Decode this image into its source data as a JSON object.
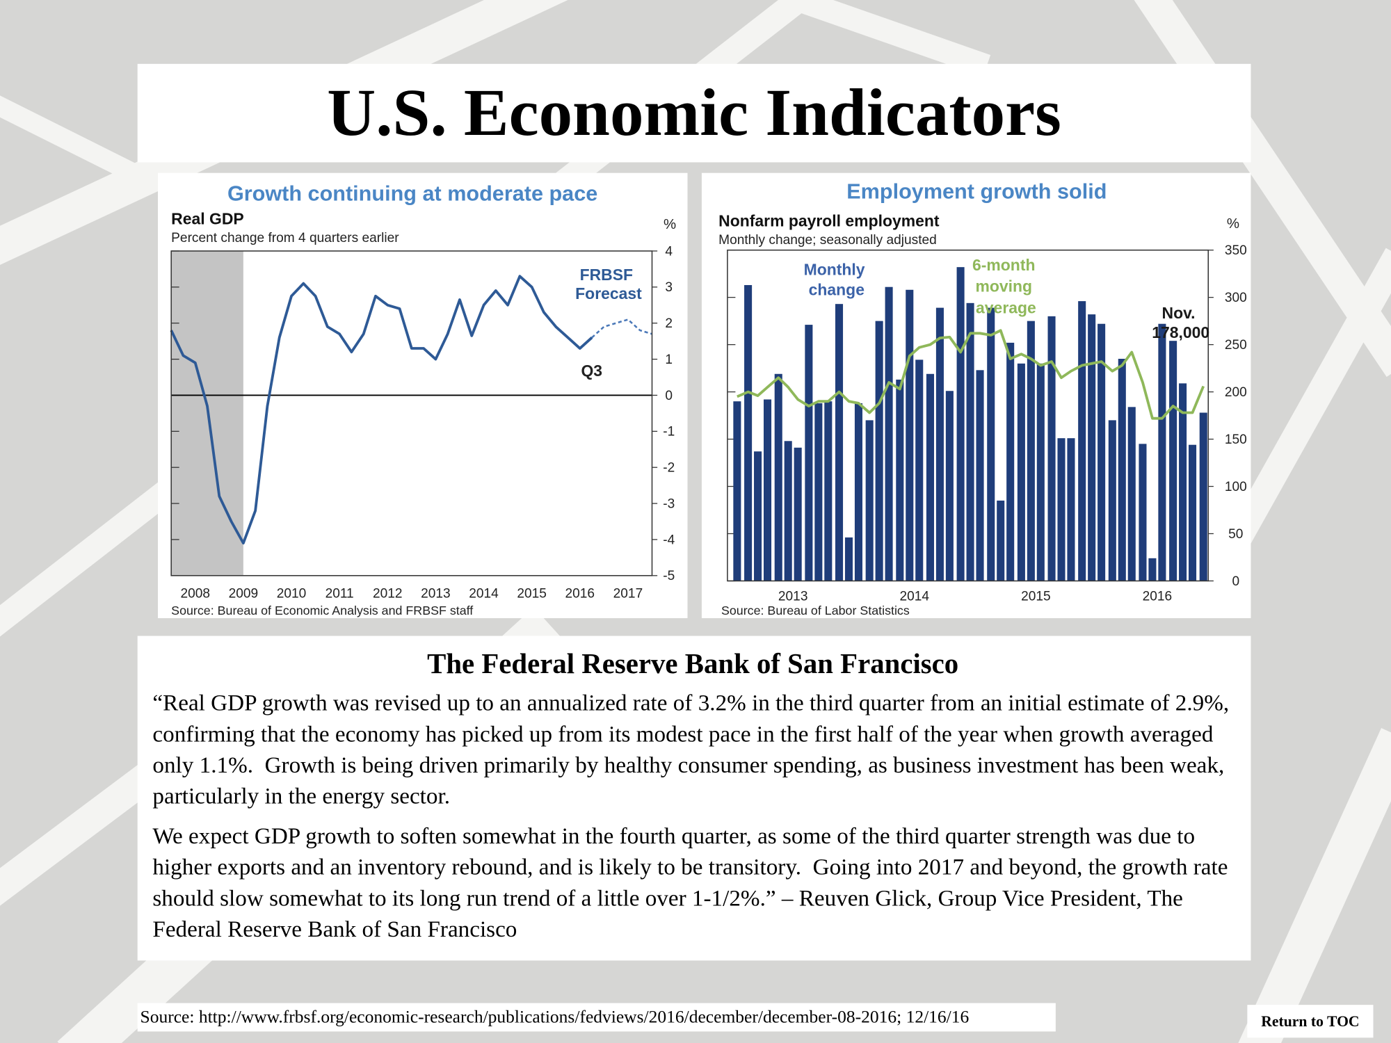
{
  "title": "U.S. Economic Indicators",
  "chart_data": [
    {
      "type": "line",
      "title": "Growth continuing  at moderate pace",
      "subtitle": "Real GDP",
      "caption": "Percent change from 4 quarters earlier",
      "unit": "%",
      "source": "Source: Bureau of Economic Analysis and FRBSF staff",
      "annotations": [
        "FRBSF Forecast",
        "Q3"
      ],
      "xlim": [
        2008,
        2018
      ],
      "ylim": [
        -5,
        4
      ],
      "yticks": [
        4,
        3,
        2,
        1,
        0,
        -1,
        -2,
        -3,
        -4,
        -5
      ],
      "xticks": [
        {
          "value": 2008.5,
          "label": "2008"
        },
        {
          "value": 2009.5,
          "label": "2009"
        },
        {
          "value": 2010.5,
          "label": "2010"
        },
        {
          "value": 2011.5,
          "label": "2011"
        },
        {
          "value": 2012.5,
          "label": "2012"
        },
        {
          "value": 2013.5,
          "label": "2013"
        },
        {
          "value": 2014.5,
          "label": "2014"
        },
        {
          "value": 2015.5,
          "label": "2015"
        },
        {
          "value": 2016.5,
          "label": "2016"
        },
        {
          "value": 2017.5,
          "label": "2017"
        }
      ],
      "shade": [
        2008,
        2009.5
      ],
      "series": [
        {
          "color": "#2e5a96",
          "x": [
            2008,
            2008.25,
            2008.5,
            2008.75,
            2009,
            2009.25,
            2009.5,
            2009.75,
            2010,
            2010.25,
            2010.5,
            2010.75,
            2011,
            2011.25,
            2011.5,
            2011.75,
            2012,
            2012.25,
            2012.5,
            2012.75,
            2013,
            2013.25,
            2013.5,
            2013.75,
            2014,
            2014.25,
            2014.5,
            2014.75,
            2015,
            2015.25,
            2015.5,
            2015.75,
            2016,
            2016.25,
            2016.5,
            2016.75
          ],
          "values": [
            1.8,
            1.1,
            0.9,
            -0.3,
            -2.8,
            -3.5,
            -4.1,
            -3.2,
            -0.3,
            1.6,
            2.75,
            3.1,
            2.75,
            1.9,
            1.7,
            1.2,
            1.7,
            2.75,
            2.5,
            2.4,
            1.3,
            1.3,
            1.0,
            1.7,
            2.65,
            1.65,
            2.5,
            2.9,
            2.5,
            3.3,
            3.0,
            2.3,
            1.9,
            1.6,
            1.3,
            1.6
          ]
        },
        {
          "color": "#4a78b8",
          "dash": true,
          "x": [
            2016.75,
            2017,
            2017.25,
            2017.5,
            2017.75,
            2018
          ],
          "values": [
            1.6,
            1.9,
            2.0,
            2.1,
            1.8,
            1.7
          ]
        }
      ]
    },
    {
      "type": "bar",
      "title": "Employment growth solid",
      "subtitle": "Nonfarm payroll employment",
      "caption": "Monthly change; seasonally adjusted",
      "unit": "%",
      "source": "Source: Bureau of Labor Statistics",
      "annotations": [
        "Nov. 178,000"
      ],
      "xlim": [
        2012.96,
        2016.92
      ],
      "ylim": [
        0,
        350
      ],
      "yticks": [
        350,
        300,
        250,
        200,
        150,
        100,
        50,
        0
      ],
      "xticks": [
        {
          "value": 2013.5,
          "label": "2013"
        },
        {
          "value": 2014.5,
          "label": "2014"
        },
        {
          "value": 2015.5,
          "label": "2015"
        },
        {
          "value": 2016.5,
          "label": "2016"
        }
      ],
      "x": [
        2013.04,
        2013.13,
        2013.21,
        2013.29,
        2013.38,
        2013.46,
        2013.54,
        2013.63,
        2013.71,
        2013.79,
        2013.88,
        2013.96,
        2014.04,
        2014.13,
        2014.21,
        2014.29,
        2014.38,
        2014.46,
        2014.54,
        2014.63,
        2014.71,
        2014.79,
        2014.88,
        2014.96,
        2015.04,
        2015.13,
        2015.21,
        2015.29,
        2015.38,
        2015.46,
        2015.54,
        2015.63,
        2015.71,
        2015.79,
        2015.88,
        2015.96,
        2016.04,
        2016.13,
        2016.21,
        2016.29,
        2016.38,
        2016.46,
        2016.54,
        2016.63,
        2016.71,
        2016.79,
        2016.88
      ],
      "series": [
        {
          "name": "Monthly change",
          "type": "bar",
          "color": "#1f3d7a",
          "values": [
            190,
            313,
            137,
            192,
            219,
            148,
            141,
            271,
            188,
            190,
            293,
            46,
            188,
            170,
            275,
            311,
            213,
            308,
            234,
            219,
            289,
            201,
            332,
            294,
            223,
            289,
            85,
            252,
            230,
            275,
            230,
            280,
            151,
            151,
            296,
            282,
            272,
            170,
            235,
            184,
            145,
            24,
            272,
            254,
            209,
            144,
            178
          ]
        },
        {
          "name": "6-month moving average",
          "type": "line",
          "color": "#8fb85a",
          "values": [
            195,
            200,
            196,
            205,
            215,
            205,
            192,
            185,
            190,
            190,
            200,
            190,
            188,
            178,
            188,
            210,
            203,
            238,
            247,
            250,
            257,
            258,
            242,
            262,
            262,
            260,
            265,
            235,
            240,
            235,
            228,
            232,
            215,
            222,
            228,
            230,
            232,
            222,
            228,
            242,
            210,
            172,
            172,
            185,
            178,
            178,
            206
          ]
        }
      ]
    }
  ],
  "text": {
    "heading": "The Federal Reserve Bank of San Francisco",
    "paragraphs": [
      "“Real GDP growth was revised up to an annualized rate of 3.2% in the third quarter from an initial estimate of 2.9%, confirming that the economy has picked up from its modest pace in the first half of the year when growth averaged only 1.1%.  Growth is being driven primarily by healthy consumer spending, as business investment has been weak, particularly in the energy sector.",
      "We expect GDP growth to soften somewhat in the fourth quarter, as some of the third quarter strength was due to higher exports and an inventory rebound, and is likely to be transitory.  Going into 2017 and beyond, the growth rate should slow somewhat to its long run trend of a little over 1-1/2%.” – Reuven Glick, Group Vice President, The Federal Reserve Bank of San Francisco"
    ]
  },
  "footer_source": "Source: http://www.frbsf.org/economic-research/publications/fedviews/2016/december/december-08-2016; 12/16/16",
  "button": "Return to TOC"
}
